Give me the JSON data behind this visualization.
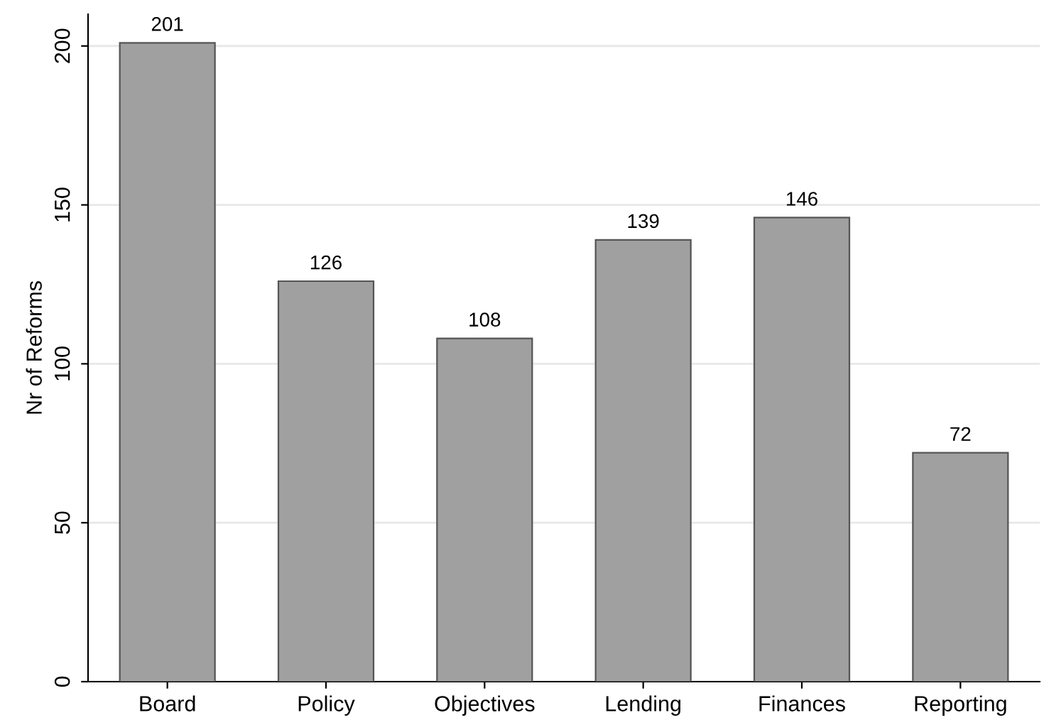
{
  "chart_data": {
    "type": "bar",
    "ylabel": "Nr of Reforms",
    "categories": [
      "Board",
      "Policy",
      "Objectives",
      "Lending",
      "Finances",
      "Reporting"
    ],
    "values": [
      201,
      126,
      108,
      139,
      146,
      72
    ],
    "color": "#a0a0a0",
    "ylim": [
      0,
      210
    ],
    "yticks": [
      0,
      50,
      100,
      150,
      200
    ],
    "grid": "y",
    "data_labels": true
  }
}
